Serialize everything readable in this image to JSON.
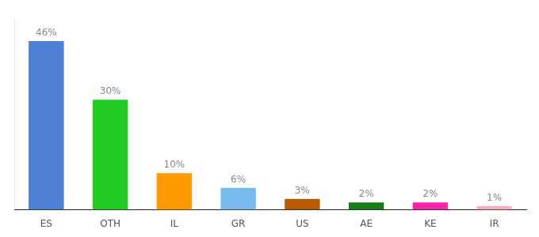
{
  "chart_data": {
    "type": "bar",
    "categories": [
      "ES",
      "OTH",
      "IL",
      "GR",
      "US",
      "AE",
      "KE",
      "IR"
    ],
    "values": [
      46,
      30,
      10,
      6,
      3,
      2,
      2,
      1
    ],
    "value_labels": [
      "46%",
      "30%",
      "10%",
      "6%",
      "3%",
      "2%",
      "2%",
      "1%"
    ],
    "colors": [
      "#4d7fd4",
      "#22cc22",
      "#ff9900",
      "#77bbee",
      "#b85a00",
      "#1a7a1a",
      "#ff22aa",
      "#ffaabb"
    ],
    "ylim": [
      0,
      52
    ],
    "data_labels": true,
    "tick_labels": "x",
    "grid": false
  }
}
